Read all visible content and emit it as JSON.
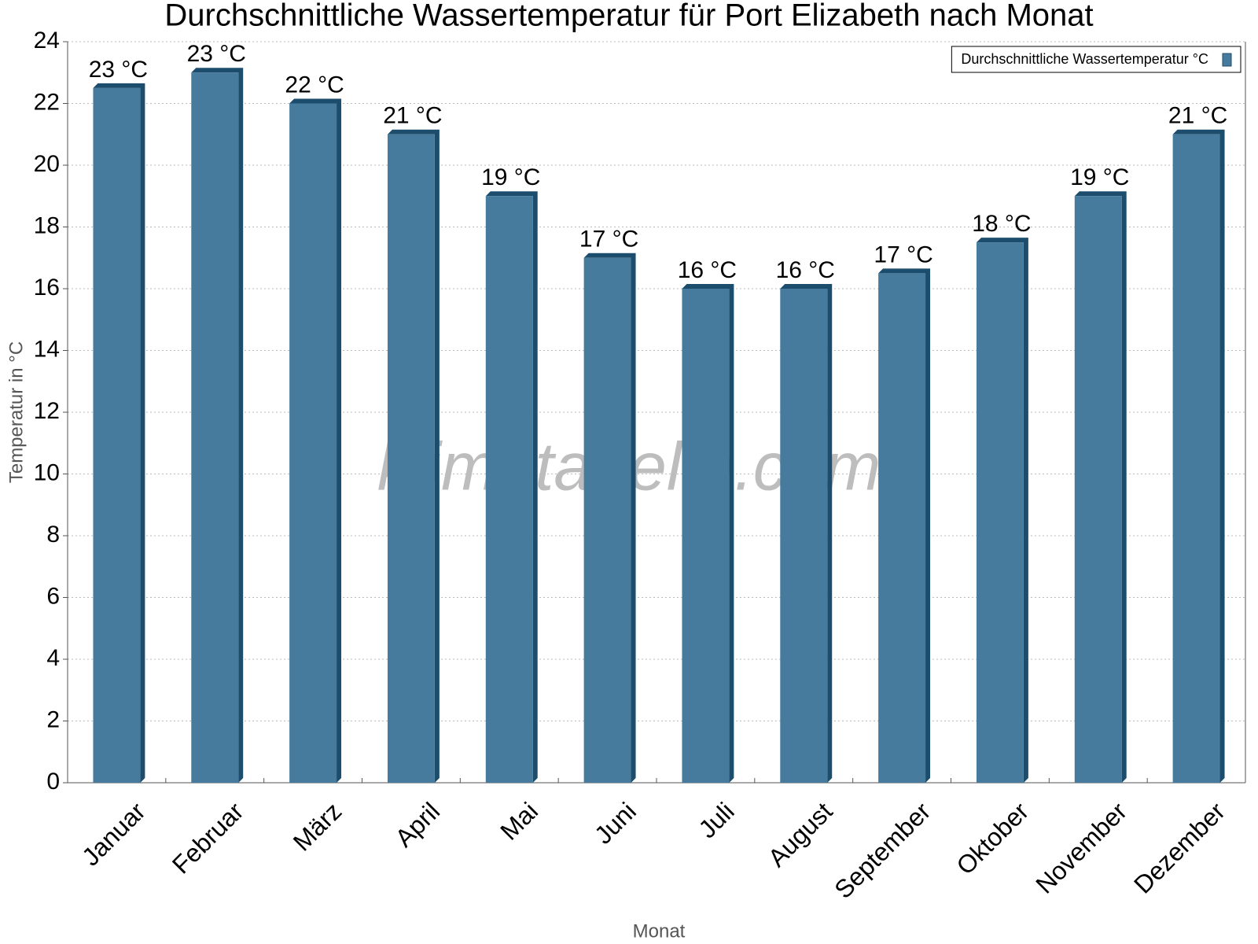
{
  "chart_data": {
    "type": "bar",
    "title": "Durchschnittliche Wassertemperatur für Port Elizabeth nach Monat",
    "x_label": "Monat",
    "y_label": "Temperatur in °C",
    "watermark": "klimatabelle.com",
    "categories": [
      "Januar",
      "Februar",
      "März",
      "April",
      "Mai",
      "Juni",
      "Juli",
      "August",
      "September",
      "Oktober",
      "November",
      "Dezember"
    ],
    "series": [
      {
        "name": "Durchschnittliche Wassertemperatur °C",
        "color": "#467b9e",
        "values": [
          22.5,
          23,
          22,
          21,
          19,
          17,
          16,
          16,
          16.5,
          17.5,
          19,
          21
        ],
        "value_labels": [
          "23 °C",
          "23 °C",
          "22 °C",
          "21 °C",
          "19 °C",
          "17 °C",
          "16 °C",
          "16 °C",
          "17 °C",
          "18 °C",
          "19 °C",
          "21 °C"
        ]
      }
    ],
    "ylim": [
      0,
      24
    ],
    "yticks": [
      0,
      2,
      4,
      6,
      8,
      10,
      12,
      14,
      16,
      18,
      20,
      22,
      24
    ],
    "grid": true,
    "legend": "top-right"
  }
}
